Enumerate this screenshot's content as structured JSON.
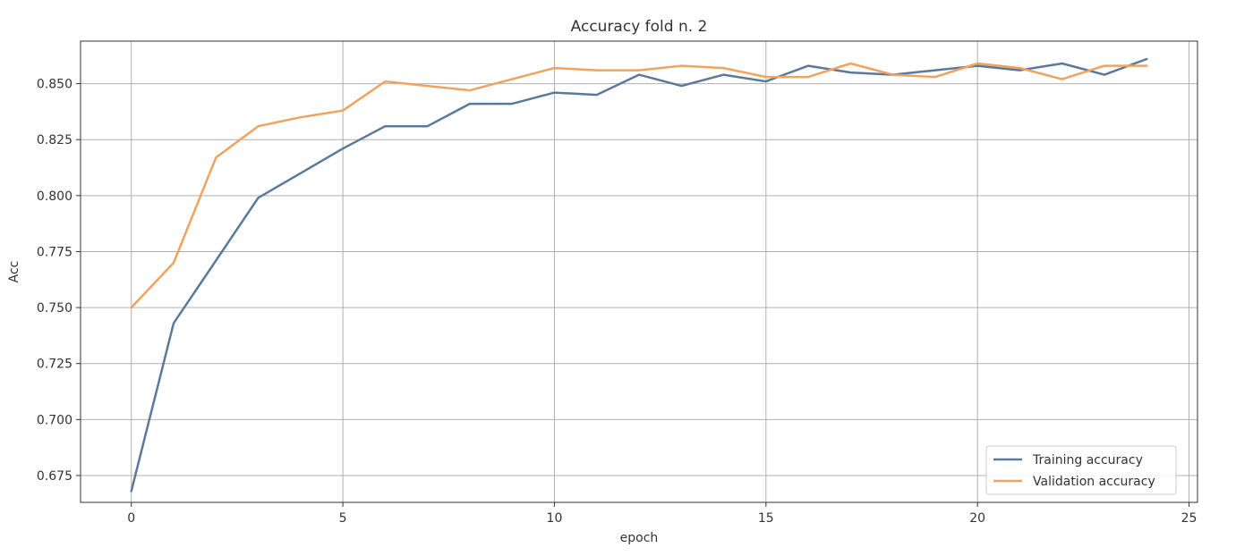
{
  "chart_data": {
    "type": "line",
    "title": "Accuracy fold n. 2",
    "xlabel": "epoch",
    "ylabel": "Acc",
    "xlim": [
      -1.2,
      25.2
    ],
    "ylim": [
      0.663,
      0.869
    ],
    "xticks": [
      0,
      5,
      10,
      15,
      20,
      25
    ],
    "yticks": [
      0.675,
      0.7,
      0.725,
      0.75,
      0.775,
      0.8,
      0.825,
      0.85
    ],
    "xtick_labels": [
      "0",
      "5",
      "10",
      "15",
      "20",
      "25"
    ],
    "ytick_labels": [
      "0.675",
      "0.700",
      "0.725",
      "0.750",
      "0.775",
      "0.800",
      "0.825",
      "0.850"
    ],
    "grid": true,
    "legend_position": "bottom-right",
    "x": [
      0,
      1,
      2,
      3,
      4,
      5,
      6,
      7,
      8,
      9,
      10,
      11,
      12,
      13,
      14,
      15,
      16,
      17,
      18,
      19,
      20,
      21,
      22,
      23,
      24
    ],
    "series": [
      {
        "name": "Training accuracy",
        "color": "#5b7a99",
        "values": [
          0.668,
          0.743,
          0.771,
          0.799,
          0.81,
          0.821,
          0.831,
          0.831,
          0.841,
          0.841,
          0.846,
          0.845,
          0.854,
          0.849,
          0.854,
          0.851,
          0.858,
          0.855,
          0.854,
          0.856,
          0.858,
          0.856,
          0.859,
          0.854,
          0.861
        ]
      },
      {
        "name": "Validation accuracy",
        "color": "#f0a35e",
        "values": [
          0.75,
          0.77,
          0.817,
          0.831,
          0.835,
          0.838,
          0.851,
          0.849,
          0.847,
          0.852,
          0.857,
          0.856,
          0.856,
          0.858,
          0.857,
          0.853,
          0.853,
          0.859,
          0.854,
          0.853,
          0.859,
          0.857,
          0.852,
          0.858,
          0.858
        ]
      }
    ]
  }
}
